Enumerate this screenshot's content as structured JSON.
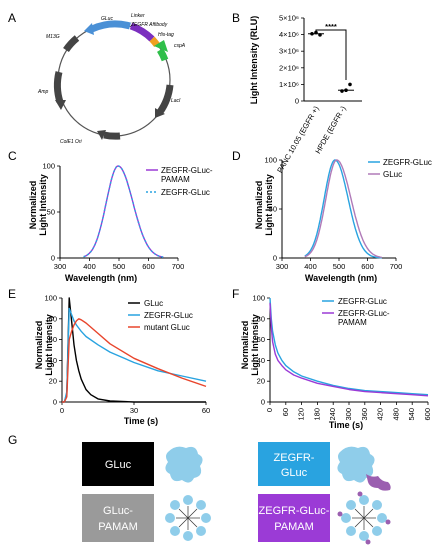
{
  "panels": [
    "A",
    "B",
    "C",
    "D",
    "E",
    "F",
    "G"
  ],
  "plasmid": {
    "features": [
      "GLuc",
      "Linker",
      "ZEGFR Affibody",
      "His-tag",
      "cspA",
      "M13G",
      "Amp",
      "LacI",
      "ColE1 Ori"
    ]
  },
  "chart_data": [
    {
      "panel": "B",
      "type": "scatter",
      "ylabel": "Light Intensity (RLU)",
      "y_ticks": [
        "0",
        "1×10⁶",
        "2×10⁶",
        "3×10⁶",
        "4×10⁶",
        "5×10⁶"
      ],
      "ylim": [
        0,
        5000000
      ],
      "categories": [
        "PANC 10.05 (EGFR +)",
        "HPDE (EGFR -)"
      ],
      "points": [
        [
          4050000,
          4120000,
          3980000
        ],
        [
          600000,
          650000,
          1000000
        ]
      ],
      "means": [
        4050000,
        650000
      ],
      "significance": "****"
    },
    {
      "panel": "C",
      "type": "line",
      "xlabel": "Wavelength (nm)",
      "ylabel": [
        "Normalized",
        "Light Intensity"
      ],
      "xlim": [
        300,
        700
      ],
      "ylim": [
        0,
        100
      ],
      "x_ticks": [
        300,
        400,
        500,
        600,
        700
      ],
      "y_ticks": [
        0,
        50,
        100
      ],
      "series": [
        {
          "name": "ZEGFR-GLuc-PAMAM",
          "color": "#9b3bd6",
          "dash": false,
          "center": 497,
          "sigma_left": 40,
          "sigma_right": 50,
          "range": [
            380,
            650
          ]
        },
        {
          "name": "ZEGFR-GLuc",
          "color": "#29a3e0",
          "dash": true,
          "center": 497,
          "sigma_left": 40,
          "sigma_right": 50,
          "range": [
            380,
            650
          ]
        }
      ]
    },
    {
      "panel": "D",
      "type": "line",
      "xlabel": "Wavelength (nm)",
      "ylabel": [
        "Normalized",
        "Light Intensity"
      ],
      "xlim": [
        300,
        700
      ],
      "ylim": [
        0,
        100
      ],
      "x_ticks": [
        300,
        400,
        500,
        600,
        700
      ],
      "y_ticks": [
        0,
        50,
        100
      ],
      "series": [
        {
          "name": "ZEGFR-GLuc",
          "color": "#29a3e0",
          "dash": false,
          "center": 486,
          "sigma_left": 38,
          "sigma_right": 46,
          "range": [
            380,
            650
          ]
        },
        {
          "name": "GLuc",
          "color": "#b07ab8",
          "dash": false,
          "center": 492,
          "sigma_left": 38,
          "sigma_right": 50,
          "range": [
            380,
            650
          ]
        }
      ]
    },
    {
      "panel": "E",
      "type": "line",
      "xlabel": "Time (s)",
      "ylabel": [
        "Normalized",
        "Light Intensity"
      ],
      "xlim": [
        0,
        60
      ],
      "ylim": [
        0,
        100
      ],
      "x_ticks": [
        0,
        30,
        60
      ],
      "y_ticks": [
        0,
        20,
        40,
        60,
        80,
        100
      ],
      "series": [
        {
          "name": "GLuc",
          "color": "#000000",
          "x": [
            0,
            1,
            2,
            3,
            4,
            5,
            6,
            7,
            8,
            10,
            12,
            15,
            20,
            30,
            40,
            60
          ],
          "y": [
            0,
            0,
            8,
            100,
            78,
            55,
            40,
            30,
            22,
            12,
            7,
            3,
            1,
            0,
            0,
            0
          ]
        },
        {
          "name": "ZEGFR-GLuc",
          "color": "#29a3e0",
          "x": [
            0,
            1,
            2,
            3,
            4,
            5,
            6,
            8,
            10,
            15,
            20,
            30,
            40,
            50,
            60
          ],
          "y": [
            0,
            0,
            10,
            90,
            84,
            78,
            74,
            68,
            63,
            55,
            48,
            38,
            30,
            25,
            20
          ]
        },
        {
          "name": "mutant GLuc",
          "color": "#e8452c",
          "x": [
            0,
            1,
            2,
            3,
            4,
            5,
            6,
            7,
            8,
            10,
            15,
            20,
            30,
            40,
            50,
            60
          ],
          "y": [
            0,
            0,
            5,
            60,
            68,
            74,
            78,
            80,
            79,
            76,
            66,
            56,
            42,
            32,
            23,
            15
          ]
        }
      ]
    },
    {
      "panel": "F",
      "type": "line",
      "xlabel": "Time (s)",
      "ylabel": [
        "Normalized",
        "Light Intensity"
      ],
      "xlim": [
        0,
        600
      ],
      "ylim": [
        0,
        100
      ],
      "x_ticks": [
        0,
        60,
        120,
        180,
        240,
        300,
        360,
        420,
        480,
        540,
        600
      ],
      "y_ticks": [
        0,
        20,
        40,
        60,
        80,
        100
      ],
      "series": [
        {
          "name": "ZEGFR-GLuc",
          "color": "#29a3e0",
          "x": [
            0,
            5,
            10,
            20,
            30,
            45,
            60,
            90,
            120,
            180,
            240,
            300,
            360,
            420,
            480,
            540,
            600
          ],
          "y": [
            100,
            80,
            68,
            55,
            47,
            40,
            35,
            29,
            25,
            20,
            16,
            13,
            11,
            10,
            9,
            8,
            7
          ]
        },
        {
          "name": "ZEGFR-GLuc-PAMAM",
          "color": "#9b3bd6",
          "x": [
            0,
            5,
            10,
            20,
            30,
            45,
            60,
            90,
            120,
            180,
            240,
            300,
            360,
            420,
            480,
            540,
            600
          ],
          "y": [
            95,
            72,
            58,
            46,
            40,
            35,
            31,
            26,
            23,
            18,
            15,
            12,
            10,
            9,
            8,
            7,
            6
          ]
        }
      ]
    }
  ],
  "legends": {
    "C": [
      "ZEGFR-GLuc-",
      "PAMAM",
      "ZEGFR-GLuc"
    ],
    "D": [
      "ZEGFR-GLuc",
      "GLuc"
    ],
    "E": [
      "GLuc",
      "ZEGFR-GLuc",
      "mutant GLuc"
    ],
    "F": [
      "ZEGFR-GLuc",
      "ZEGFR-GLuc-",
      "PAMAM"
    ]
  },
  "schematic": {
    "boxes": [
      {
        "lines": [
          "GLuc"
        ],
        "color": "#000000"
      },
      {
        "lines": [
          "ZEGFR-",
          "GLuc"
        ],
        "color": "#29a3e0"
      },
      {
        "lines": [
          "GLuc-",
          "PAMAM"
        ],
        "color": "#9a9a9a"
      },
      {
        "lines": [
          "ZEGFR-GLuc-",
          "PAMAM"
        ],
        "color": "#9b3bd6"
      }
    ]
  },
  "colors": {
    "blue": "#29a3e0",
    "purple": "#9b3bd6",
    "red": "#e8452c",
    "lightblue": "#8fcdea",
    "gray": "#9a9a9a"
  }
}
